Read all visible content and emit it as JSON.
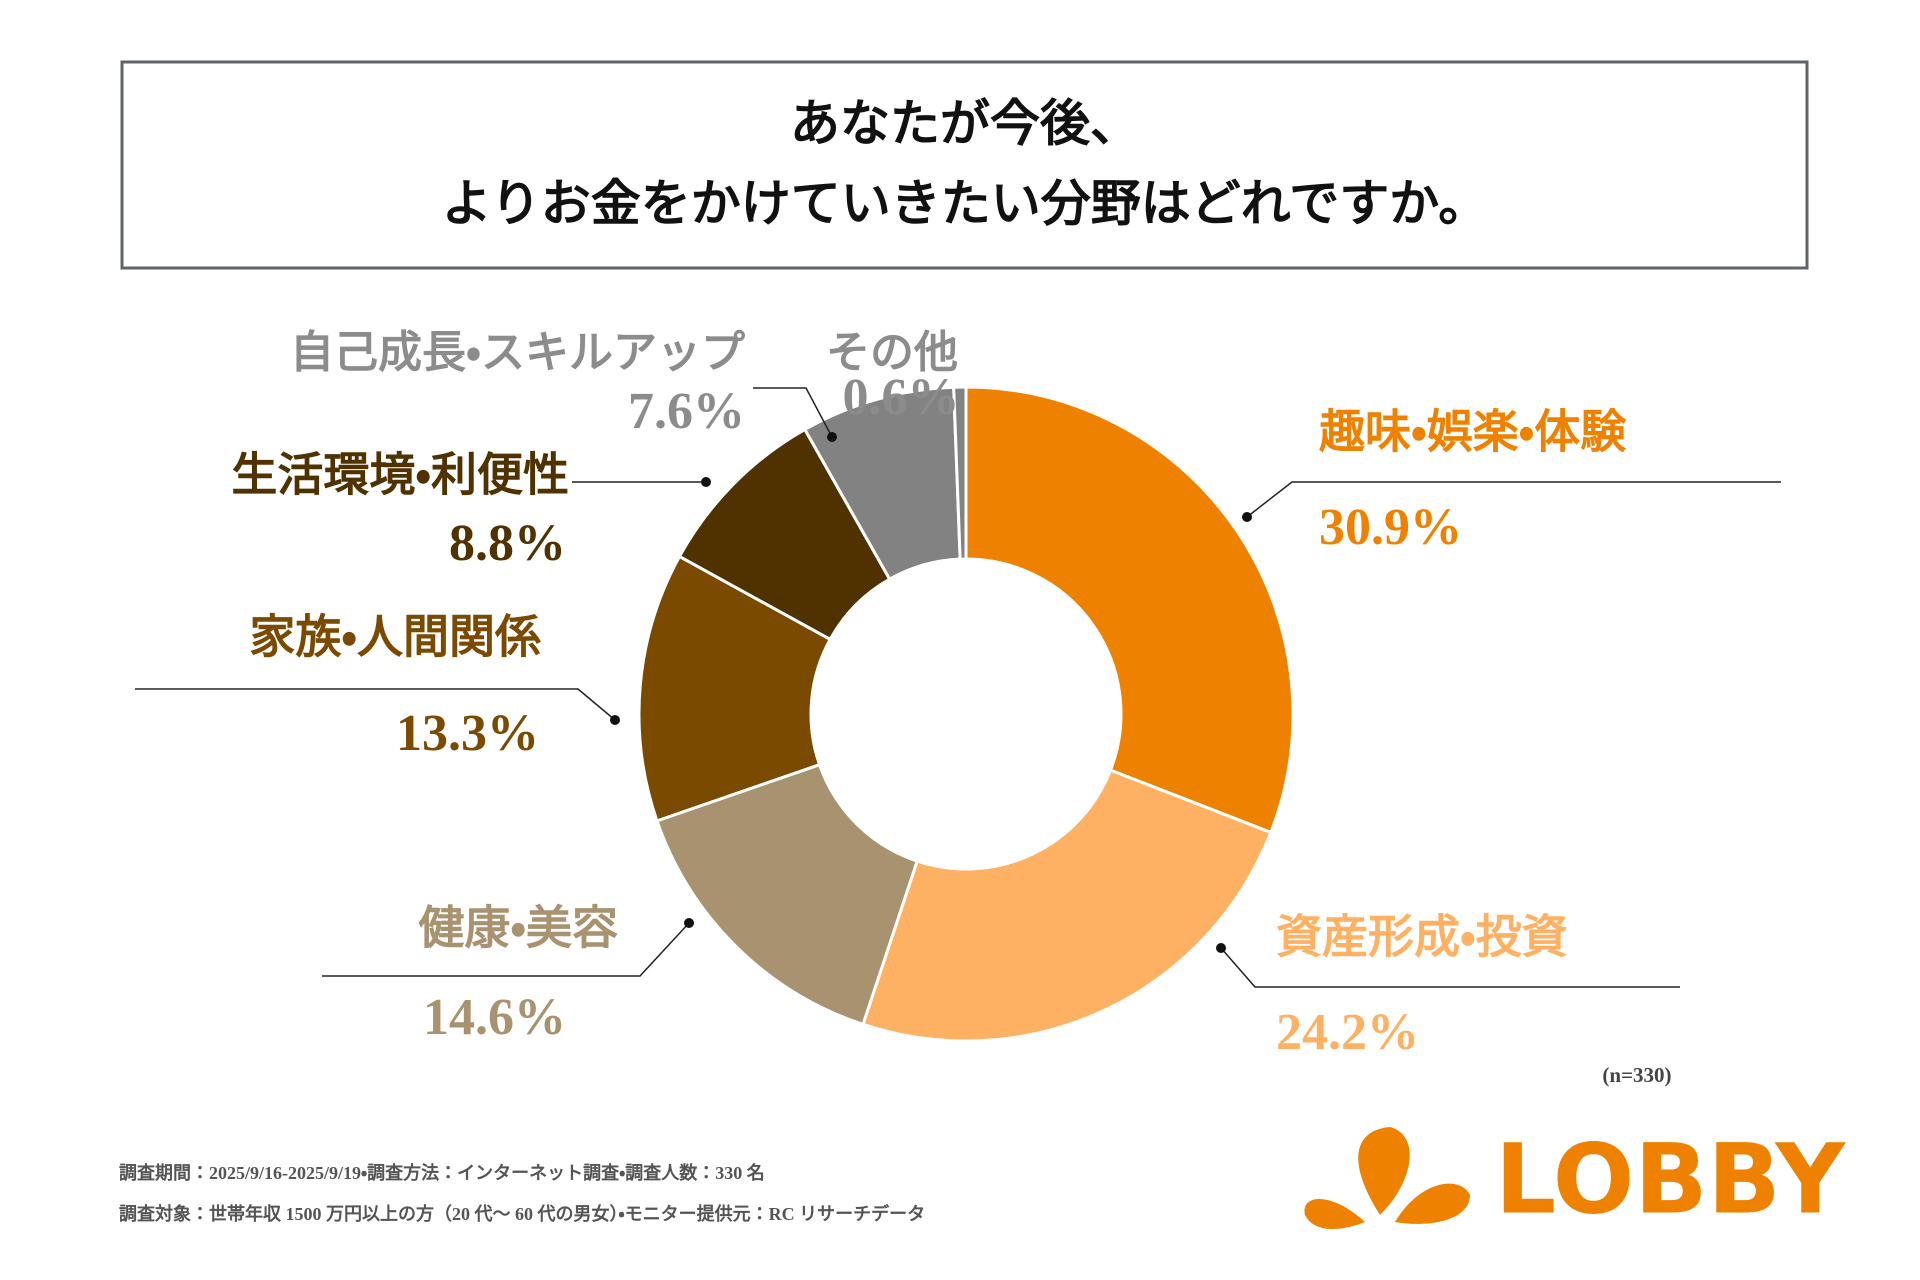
{
  "chart_data": {
    "type": "donut",
    "title": [
      "あなたが今後、",
      "よりお金をかけていきたい分野はどれですか。"
    ],
    "categories": [
      "趣味・娯楽・体験",
      "資産形成・投資",
      "健康・美容",
      "家族・人間関係",
      "生活環境・利便性",
      "自己成長・スキルアップ",
      "その他"
    ],
    "values": [
      30.9,
      24.2,
      14.6,
      13.3,
      8.8,
      7.6,
      0.6
    ],
    "value_labels": [
      "30.9%",
      "24.2%",
      "14.6%",
      "13.3%",
      "8.8%",
      "7.6%",
      "0.6%"
    ],
    "colors": [
      "#ee8200",
      "#ffb163",
      "#a89270",
      "#7a4a00",
      "#503200",
      "#828282",
      "#828282"
    ],
    "label_colors": [
      "#ee8200",
      "#ffb163",
      "#a89270",
      "#7a4a00",
      "#503200",
      "#8c8c8c",
      "#8c8c8c"
    ],
    "sample_note": "(n=330)",
    "footnotes": [
      "調査期間：2025/9/16-2025/9/19・調査方法：インターネット調査・調査人数：330 名",
      "調査対象：世帯年収 1500 万円以上の方（20 代～ 60 代の男女）・モニター提供元：RC リサーチデータ"
    ],
    "logo": "LOBBY"
  }
}
